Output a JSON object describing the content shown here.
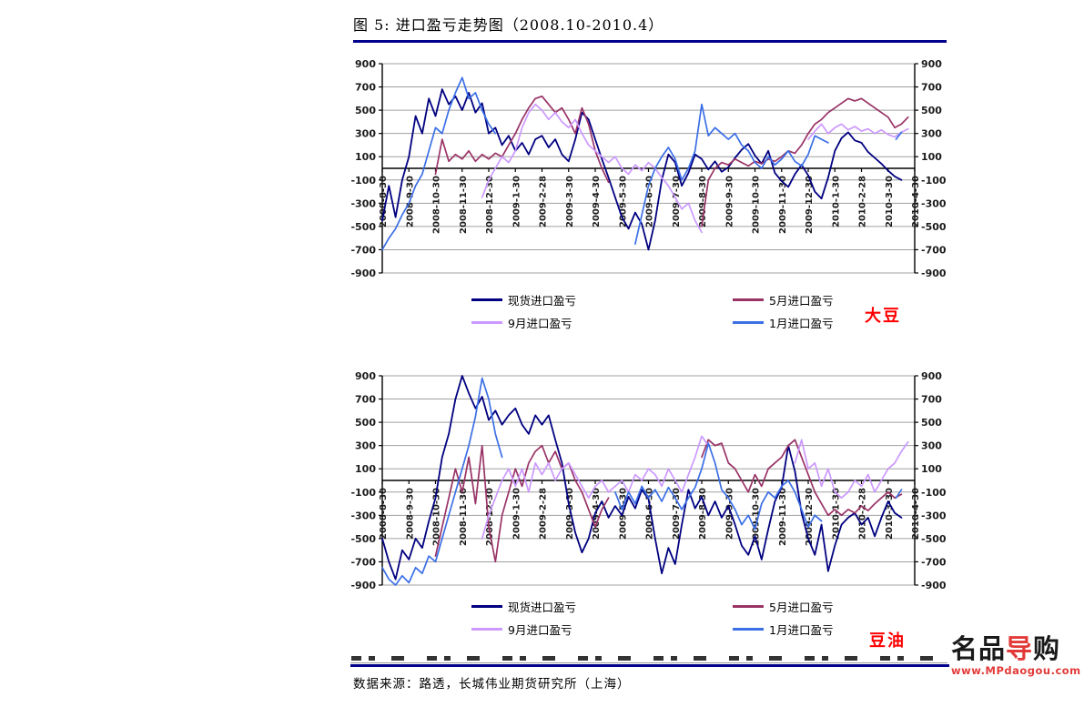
{
  "page": {
    "title": "图 5: 进口盈亏走势图（2008.10-2010.4）",
    "source_note": "数据来源：路透，长城伟业期货研究所（上海）"
  },
  "logo": {
    "prefix": "名品",
    "accent": "导",
    "suffix": "购",
    "url": "www.MPdaogou.com"
  },
  "colors": {
    "rule_navy": "#00008B",
    "red_label": "#FF0000",
    "grid": "#A0A0A0",
    "axis": "#000000"
  },
  "chart_data": [
    {
      "type": "line",
      "label": "大豆",
      "xlabel": "",
      "ylabel": "",
      "ylim": [
        -900,
        900
      ],
      "y_ticks": [
        900,
        700,
        500,
        300,
        100,
        -100,
        -300,
        -500,
        -700,
        -900
      ],
      "x_labels": [
        "2008-8-30",
        "2008-9-30",
        "2008-10-30",
        "2008-11-30",
        "2008-12-30",
        "2009-1-30",
        "2009-2-28",
        "2009-3-30",
        "2009-4-30",
        "2009-5-30",
        "2009-6-30",
        "2009-7-30",
        "2009-8-30",
        "2009-9-30",
        "2009-10-30",
        "2009-11-30",
        "2009-12-30",
        "2010-1-30",
        "2010-2-28",
        "2010-3-30",
        "2010-4-30"
      ],
      "legend": [
        {
          "label": "现货进口盈亏",
          "color": "#000080"
        },
        {
          "label": "5月进口盈亏",
          "color": "#993366"
        },
        {
          "label": "9月进口盈亏",
          "color": "#CC99FF"
        },
        {
          "label": "1月进口盈亏",
          "color": "#3B6FE6"
        }
      ],
      "series": [
        {
          "name": "现货进口盈亏",
          "color": "#000080",
          "width": 1.8,
          "segments": [
            {
              "start": 0,
              "step": 0.25,
              "values": [
                -450,
                -150,
                -420,
                -100,
                100,
                450,
                300,
                600,
                450,
                680,
                550,
                620,
                500,
                650,
                480,
                560,
                300,
                350,
                200,
                280,
                150,
                220,
                120,
                250,
                280,
                180,
                250,
                120,
                60,
                250,
                480,
                420,
                250,
                80,
                -80,
                -250,
                -420,
                -520,
                -380,
                -480,
                -700,
                -450,
                -100,
                120,
                50,
                -150,
                -40,
                120,
                80,
                -10,
                60,
                -30,
                10,
                90,
                160,
                210,
                110,
                40,
                150,
                -40,
                -110,
                -160,
                -50,
                30,
                -60,
                -200,
                -260,
                -80,
                150,
                260,
                310,
                240,
                220,
                140,
                90,
                40,
                -20,
                -70,
                -100
              ]
            }
          ]
        },
        {
          "name": "5月进口盈亏",
          "color": "#993366",
          "width": 1.7,
          "segments": [
            {
              "start": 2,
              "step": 0.25,
              "values": [
                -50,
                250,
                60,
                120,
                80,
                150,
                60,
                120,
                80,
                130,
                100,
                200,
                300,
                420,
                520,
                600,
                620,
                550,
                480,
                520,
                420,
                300,
                520,
                380,
                150,
                0,
                -120
              ]
            },
            {
              "start": 12,
              "step": 0.25,
              "values": [
                -500,
                -100,
                0,
                50,
                30,
                80,
                50,
                20,
                60,
                40,
                80,
                60,
                100,
                150,
                130,
                200,
                300,
                380,
                420,
                480,
                520,
                560,
                600,
                580,
                600,
                560,
                520,
                480,
                440,
                350,
                380,
                440
              ]
            }
          ]
        },
        {
          "name": "9月进口盈亏",
          "color": "#CC99FF",
          "width": 1.7,
          "segments": [
            {
              "start": 3.75,
              "step": 0.25,
              "values": [
                -250,
                -100,
                0,
                100,
                50,
                150,
                350,
                480,
                550,
                500,
                420,
                480,
                400,
                350,
                420,
                300,
                200,
                150,
                100,
                50,
                100,
                0,
                -50,
                30,
                -20,
                50,
                0,
                -80,
                -150,
                -250,
                -350,
                -300,
                -450,
                -550
              ]
            },
            {
              "start": 16,
              "step": 0.25,
              "values": [
                250,
                320,
                380,
                300,
                350,
                380,
                330,
                360,
                320,
                340,
                300,
                330,
                290,
                270,
                310,
                340
              ]
            }
          ]
        },
        {
          "name": "1月进口盈亏",
          "color": "#3B6FE6",
          "width": 1.7,
          "segments": [
            {
              "start": 0,
              "step": 0.25,
              "values": [
                -700,
                -600,
                -520,
                -400,
                -300,
                -150,
                -50,
                150,
                350,
                300,
                500,
                650,
                780,
                600,
                650,
                500,
                380,
                300
              ]
            },
            {
              "start": 9.5,
              "step": 0.25,
              "values": [
                -650,
                -400,
                -150,
                0,
                100,
                180,
                80,
                -100,
                0,
                150,
                550,
                280,
                350,
                300,
                250,
                300,
                200,
                150,
                50,
                0,
                100,
                30,
                80,
                150,
                60,
                20,
                120,
                280,
                250,
                220
              ]
            },
            {
              "start": 19.3,
              "step": 0.2,
              "values": [
                250,
                310
              ]
            }
          ]
        }
      ]
    },
    {
      "type": "line",
      "label": "豆油",
      "xlabel": "",
      "ylabel": "",
      "ylim": [
        -900,
        900
      ],
      "y_ticks": [
        900,
        700,
        500,
        300,
        100,
        -100,
        -300,
        -500,
        -700,
        -900
      ],
      "x_labels": [
        "2008-8-30",
        "2008-9-30",
        "2008-10-30",
        "2008-11-30",
        "2008-12-30",
        "2009-1-30",
        "2009-2-28",
        "2009-3-30",
        "2009-4-30",
        "2009-5-30",
        "2009-6-30",
        "2009-7-30",
        "2009-8-30",
        "2009-9-30",
        "2009-10-30",
        "2009-11-30",
        "2009-12-30",
        "2010-1-30",
        "2010-2-28",
        "2010-3-30",
        "2010-4-30"
      ],
      "legend": [
        {
          "label": "现货进口盈亏",
          "color": "#000080"
        },
        {
          "label": "5月进口盈亏",
          "color": "#993366"
        },
        {
          "label": "9月进口盈亏",
          "color": "#CC99FF"
        },
        {
          "label": "1月进口盈亏",
          "color": "#3B6FE6"
        }
      ],
      "series": [
        {
          "name": "现货进口盈亏",
          "color": "#000080",
          "width": 1.8,
          "segments": [
            {
              "start": 0,
              "step": 0.25,
              "values": [
                -500,
                -700,
                -850,
                -600,
                -680,
                -500,
                -580,
                -350,
                -150,
                200,
                400,
                700,
                900,
                750,
                620,
                720,
                520,
                600,
                480,
                560,
                620,
                480,
                400,
                560,
                480,
                560,
                350,
                150,
                -200,
                -450,
                -620,
                -500,
                -280,
                -180,
                -320,
                -220,
                -300,
                -140,
                -240,
                -80,
                -160,
                -500,
                -800,
                -580,
                -720,
                -380,
                -80,
                -240,
                -140,
                -300,
                -180,
                -320,
                -220,
                -380,
                -560,
                -640,
                -480,
                -680,
                -420,
                -180,
                -60,
                300,
                80,
                -280,
                -500,
                -640,
                -380,
                -780,
                -560,
                -380,
                -320,
                -280,
                -380,
                -320,
                -480,
                -320,
                -180,
                -280,
                -320
              ]
            }
          ]
        },
        {
          "name": "5月进口盈亏",
          "color": "#993366",
          "width": 1.7,
          "segments": [
            {
              "start": 2,
              "step": 0.25,
              "values": [
                -650,
                -400,
                -150,
                100,
                -100,
                200,
                -200,
                300,
                -400,
                -700,
                -300,
                -100,
                100,
                -50,
                150,
                250,
                300,
                150,
                250,
                100,
                150,
                0,
                -100,
                -250,
                -400,
                -250,
                -150
              ]
            },
            {
              "start": 12,
              "step": 0.25,
              "values": [
                200,
                350,
                300,
                320,
                150,
                100,
                0,
                -100,
                50,
                -50,
                100,
                150,
                200,
                300,
                350,
                200,
                50,
                -100,
                -200,
                -300,
                -250,
                -300,
                -250,
                -280,
                -220,
                -260,
                -200,
                -150,
                -100,
                -150,
                -120
              ]
            }
          ]
        },
        {
          "name": "9月进口盈亏",
          "color": "#CC99FF",
          "width": 1.7,
          "segments": [
            {
              "start": 3.75,
              "step": 0.25,
              "values": [
                -500,
                -300,
                -150,
                0,
                100,
                -50,
                100,
                -100,
                150,
                50,
                150,
                0,
                100,
                150,
                50,
                -50,
                -150,
                -50,
                0,
                -100,
                -50,
                0,
                -100,
                50,
                0,
                100,
                50,
                -50,
                100,
                0,
                -100,
                50,
                200,
                380,
                300
              ]
            },
            {
              "start": 15.5,
              "step": 0.25,
              "values": [
                150,
                350,
                100,
                150,
                -50,
                100,
                -100,
                -150,
                -100,
                0,
                -50,
                50,
                -100,
                0,
                100,
                150,
                250,
                330
              ]
            }
          ]
        },
        {
          "name": "1月进口盈亏",
          "color": "#3B6FE6",
          "width": 1.7,
          "segments": [
            {
              "start": 0,
              "step": 0.25,
              "values": [
                -750,
                -850,
                -900,
                -820,
                -880,
                -750,
                -800,
                -650,
                -700,
                -500,
                -300,
                -100,
                100,
                300,
                550,
                880,
                700,
                400,
                200
              ]
            },
            {
              "start": 8.75,
              "step": 0.25,
              "values": [
                -100,
                -250,
                -100,
                -200,
                -50,
                -150,
                -80,
                -180,
                -60,
                -150,
                -250,
                -150,
                -60,
                100,
                320,
                150,
                -80,
                -150,
                -250,
                -380,
                -300,
                -420,
                -200,
                -100,
                -150,
                -50,
                0,
                -100,
                -250,
                -400,
                -300,
                -350
              ]
            },
            {
              "start": 19.3,
              "step": 0.2,
              "values": [
                -150,
                -80
              ]
            }
          ]
        }
      ]
    }
  ]
}
